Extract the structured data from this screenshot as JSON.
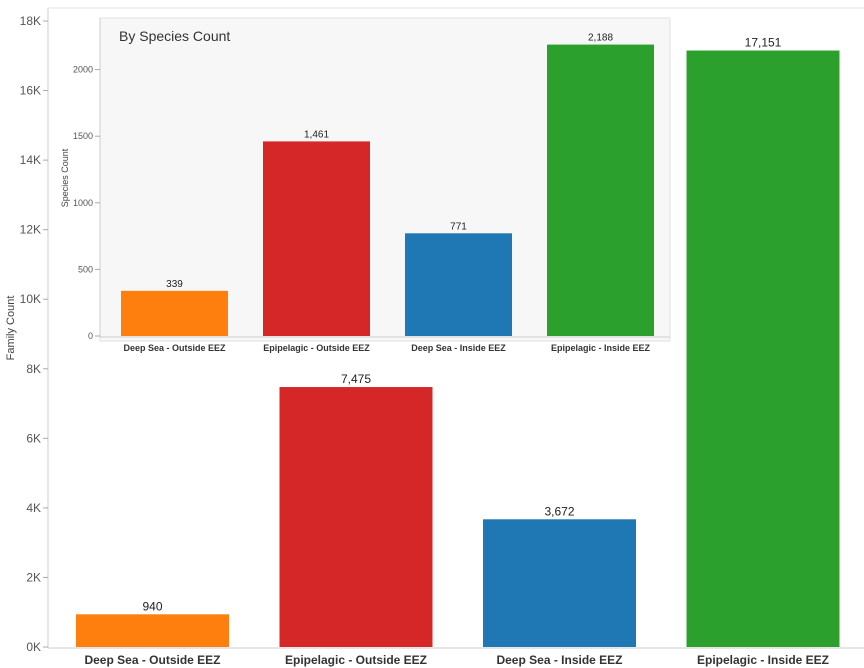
{
  "chart_data": [
    {
      "type": "bar",
      "title": "",
      "xlabel": "",
      "ylabel": "Family Count",
      "ylim": [
        0,
        18000
      ],
      "categories": [
        "Deep Sea - Outside EEZ",
        "Epipelagic - Outside EEZ",
        "Deep Sea - Inside EEZ",
        "Epipelagic - Inside EEZ"
      ],
      "values": [
        940,
        7475,
        3672,
        17151
      ],
      "value_labels": [
        "940",
        "7,475",
        "3,672",
        "17,151"
      ],
      "colors": [
        "#ff7f0e",
        "#d62728",
        "#1f77b4",
        "#2ca02c"
      ],
      "y_ticks": [
        0,
        2000,
        4000,
        6000,
        8000,
        10000,
        12000,
        14000,
        16000,
        18000
      ],
      "y_tick_labels": [
        "0K",
        "2K",
        "4K",
        "6K",
        "8K",
        "10K",
        "12K",
        "14K",
        "16K",
        "18K"
      ],
      "grid": false
    },
    {
      "type": "bar",
      "title": "By Species Count",
      "xlabel": "",
      "ylabel": "Species Count",
      "ylim": [
        0,
        2350
      ],
      "categories": [
        "Deep Sea - Outside EEZ",
        "Epipelagic - Outside EEZ",
        "Deep Sea - Inside EEZ",
        "Epipelagic - Inside EEZ"
      ],
      "values": [
        339,
        1461,
        771,
        2188
      ],
      "value_labels": [
        "339",
        "1,461",
        "771",
        "2,188"
      ],
      "colors": [
        "#ff7f0e",
        "#d62728",
        "#1f77b4",
        "#2ca02c"
      ],
      "y_ticks": [
        0,
        500,
        1000,
        1500,
        2000
      ],
      "y_tick_labels": [
        "0",
        "500",
        "1000",
        "1500",
        "2000"
      ],
      "grid": false,
      "placement": "inset top-left"
    }
  ]
}
